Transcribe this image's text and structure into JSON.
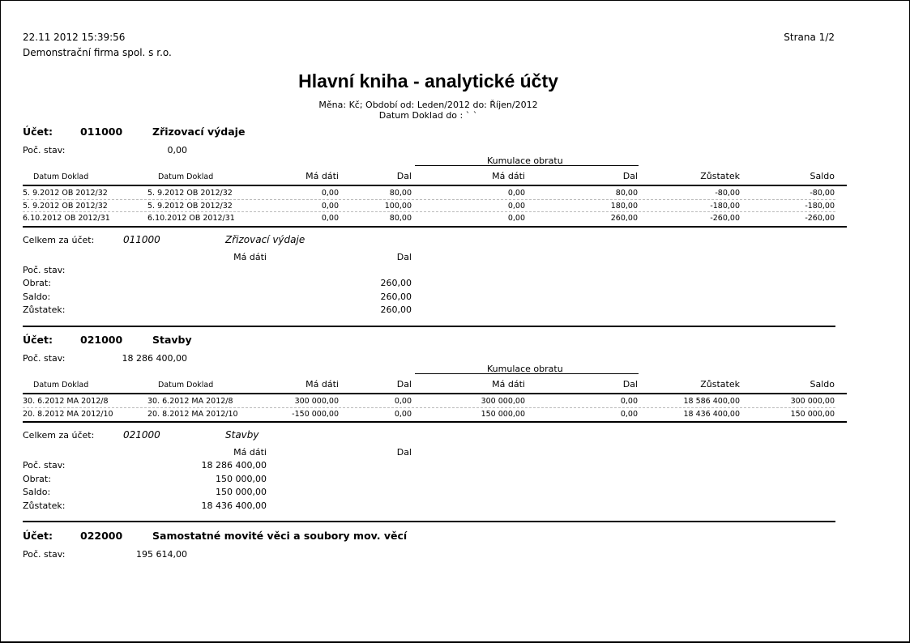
{
  "header": {
    "timestamp": "22.11 2012 15:39:56",
    "company": "Demonstrační firma spol. s r.o.",
    "page": "Strana 1/2",
    "title": "Hlavní kniha - analytické účty",
    "subtitle": "Měna: Kč; Období od: Leden/2012 do: Říjen/2012",
    "subtitle2": "Datum Doklad do : ` `"
  },
  "labels": {
    "account": "Účet:",
    "opening": "Poč. stav:",
    "cumulation": "Kumulace obratu",
    "col_date_doc": "Datum Doklad",
    "col_debit": "Má dáti",
    "col_credit": "Dal",
    "col_balance": "Zůstatek",
    "col_saldo": "Saldo",
    "total_for_account": "Celkem za účet:",
    "sum_opening": "Poč. stav:",
    "sum_turnover": "Obrat:",
    "sum_saldo": "Saldo:",
    "sum_balance": "Zůstatek:"
  },
  "accounts": [
    {
      "number": "011000",
      "name": "Zřizovací výdaje",
      "opening": "0,00",
      "rows": [
        [
          "5. 9.2012 OB 2012/32",
          "5. 9.2012 OB 2012/32",
          "0,00",
          "80,00",
          "0,00",
          "80,00",
          "-80,00",
          "-80,00"
        ],
        [
          "5. 9.2012 OB 2012/32",
          "5. 9.2012 OB 2012/32",
          "0,00",
          "100,00",
          "0,00",
          "180,00",
          "-180,00",
          "-180,00"
        ],
        [
          "6.10.2012 OB 2012/31",
          "6.10.2012 OB 2012/31",
          "0,00",
          "80,00",
          "0,00",
          "260,00",
          "-260,00",
          "-260,00"
        ]
      ],
      "summary": {
        "opening": {
          "debit": "",
          "credit": ""
        },
        "turnover": {
          "debit": "",
          "credit": "260,00"
        },
        "saldo": {
          "debit": "",
          "credit": "260,00"
        },
        "balance": {
          "debit": "",
          "credit": "260,00"
        }
      }
    },
    {
      "number": "021000",
      "name": "Stavby",
      "opening": "18 286 400,00",
      "rows": [
        [
          "30. 6.2012 MA 2012/8",
          "30. 6.2012 MA 2012/8",
          "300 000,00",
          "0,00",
          "300 000,00",
          "0,00",
          "18 586 400,00",
          "300 000,00"
        ],
        [
          "20. 8.2012 MA 2012/10",
          "20. 8.2012 MA 2012/10",
          "-150 000,00",
          "0,00",
          "150 000,00",
          "0,00",
          "18 436 400,00",
          "150 000,00"
        ]
      ],
      "summary": {
        "opening": {
          "debit": "18 286 400,00",
          "credit": ""
        },
        "turnover": {
          "debit": "150 000,00",
          "credit": ""
        },
        "saldo": {
          "debit": "150 000,00",
          "credit": ""
        },
        "balance": {
          "debit": "18 436 400,00",
          "credit": ""
        }
      }
    },
    {
      "number": "022000",
      "name": "Samostatné movité věci a soubory mov. věcí",
      "opening": "195 614,00"
    }
  ]
}
